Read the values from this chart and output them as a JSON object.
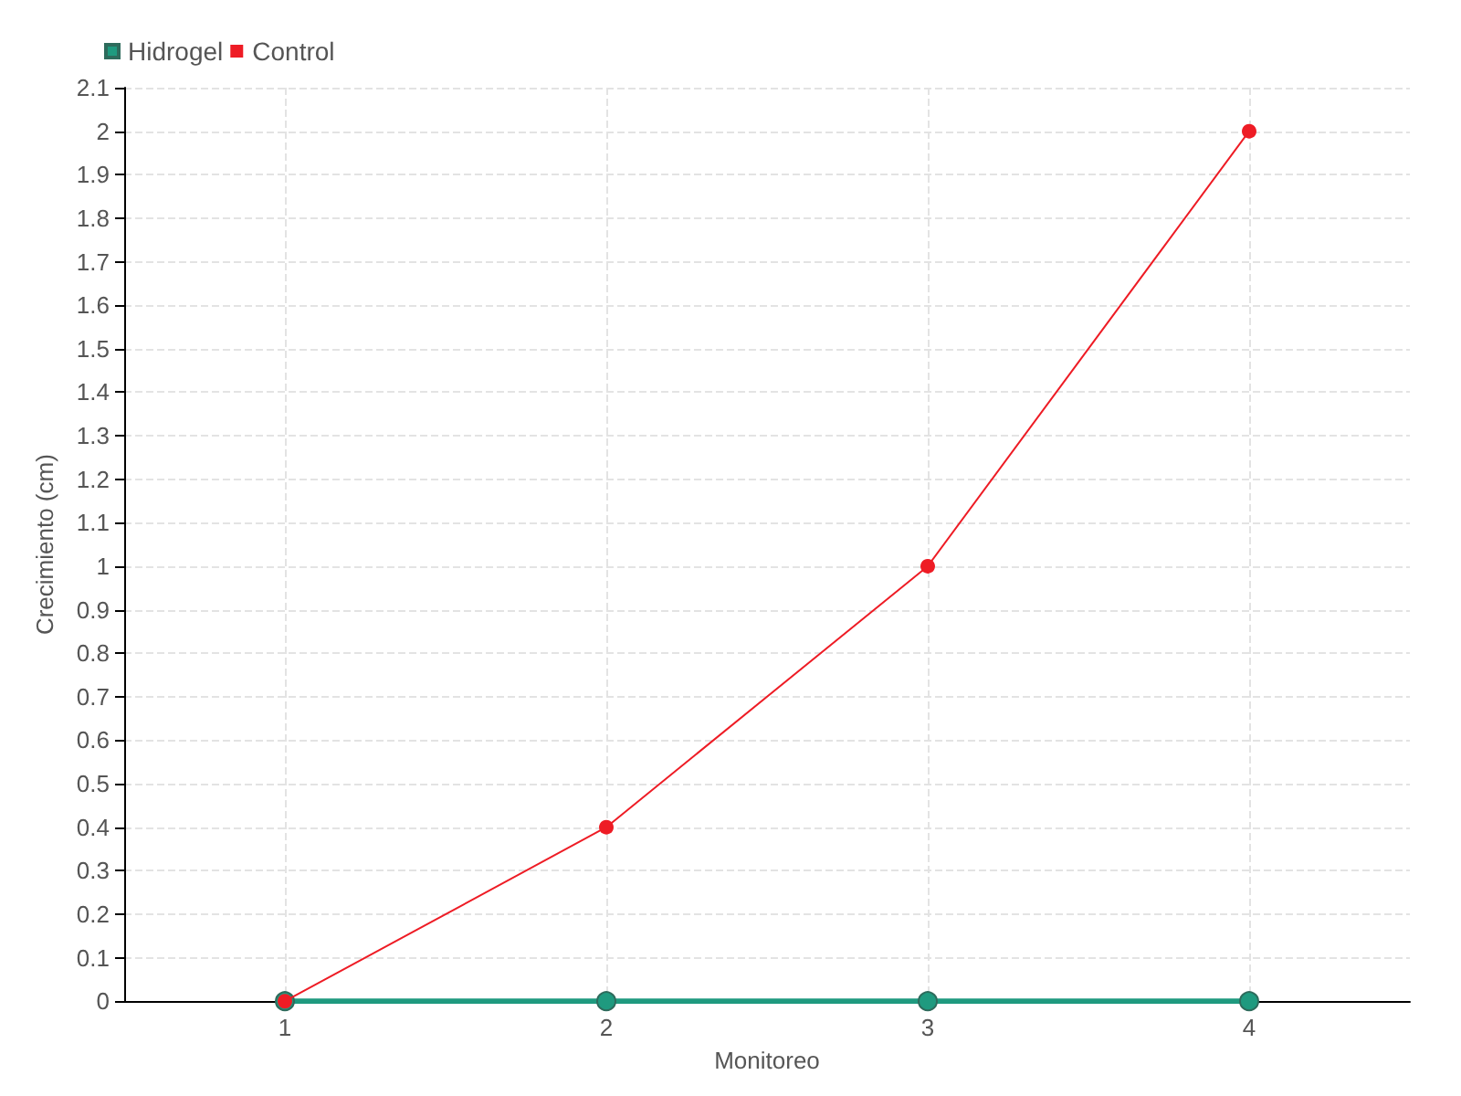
{
  "chart_data": {
    "type": "line",
    "xlabel": "Monitoreo",
    "ylabel": "Crecimiento (cm)",
    "x": [
      1,
      2,
      3,
      4
    ],
    "xlim": [
      0.5,
      4.5
    ],
    "xticks": [
      1,
      2,
      3,
      4
    ],
    "ylim": [
      0,
      2.1
    ],
    "yticks": [
      0,
      0.1,
      0.2,
      0.3,
      0.4,
      0.5,
      0.6,
      0.7,
      0.8,
      0.9,
      1,
      1.1,
      1.2,
      1.3,
      1.4,
      1.5,
      1.6,
      1.7,
      1.8,
      1.9,
      2,
      2.1
    ],
    "series": [
      {
        "name": "Hidrogel",
        "color": "#1f9a7f",
        "values": [
          0,
          0,
          0,
          0
        ]
      },
      {
        "name": "Control",
        "color": "#ee1c25",
        "values": [
          0,
          0.4,
          1,
          2
        ]
      }
    ],
    "grid": true,
    "legend": "top left",
    "marker": "circle",
    "line_style": "solid"
  }
}
